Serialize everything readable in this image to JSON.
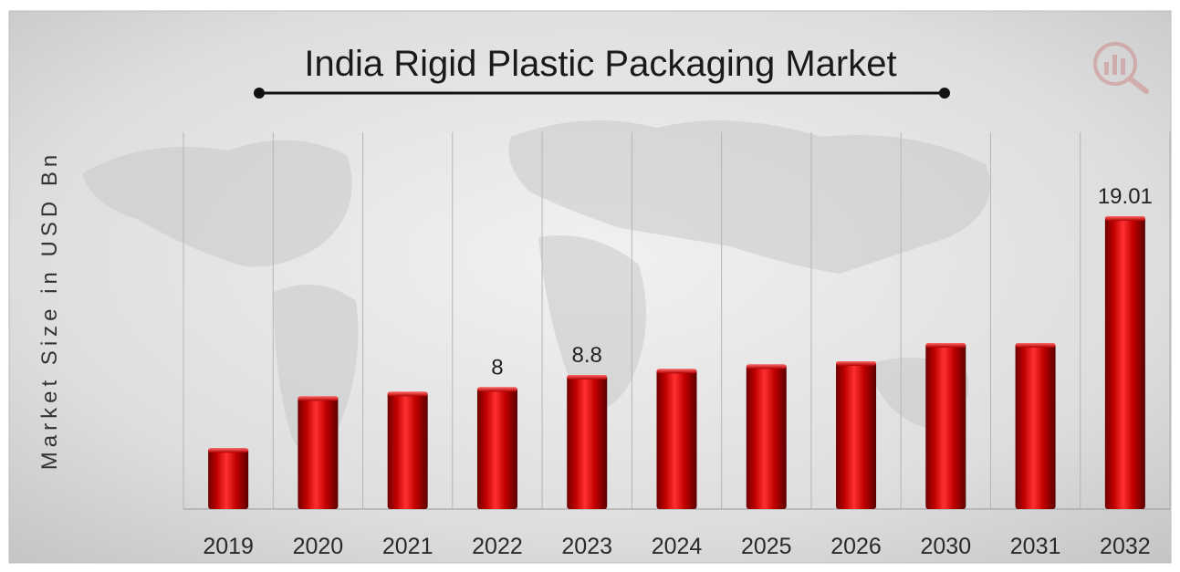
{
  "chart_data": {
    "type": "bar",
    "title": "India Rigid Plastic Packaging Market",
    "ylabel": "Market Size in USD Bn",
    "xlabel": "",
    "categories": [
      "2019",
      "2020",
      "2021",
      "2022",
      "2023",
      "2024",
      "2025",
      "2026",
      "2030",
      "2031",
      "2032"
    ],
    "values": [
      4.0,
      7.4,
      7.7,
      8.0,
      8.8,
      9.2,
      9.5,
      9.7,
      10.9,
      10.9,
      19.01
    ],
    "data_labels": [
      {
        "category": "2022",
        "text": "8"
      },
      {
        "category": "2023",
        "text": "8.8"
      },
      {
        "category": "2032",
        "text": "19.01"
      }
    ],
    "grid": "vertical",
    "legend": "none",
    "colors": {
      "bar": "#c00000",
      "bar_dark": "#7a0000",
      "bar_light": "#ff3b3b",
      "background": "#dcdcdc"
    }
  }
}
